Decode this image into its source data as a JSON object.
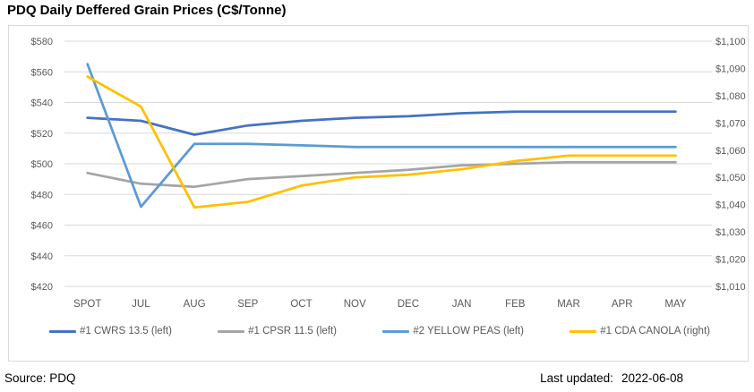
{
  "title": "PDQ Daily Deffered Grain Prices (C$/Tonne)",
  "chart_data": {
    "type": "line",
    "title": "PDQ Daily Deffered Grain Prices (C$/Tonne)",
    "categories": [
      "SPOT",
      "JUL",
      "AUG",
      "SEP",
      "OCT",
      "NOV",
      "DEC",
      "JAN",
      "FEB",
      "MAR",
      "APR",
      "MAY"
    ],
    "series": [
      {
        "name": "#1 CWRS 13.5 (left)",
        "axis": "left",
        "color": "#4472C4",
        "values": [
          530,
          528,
          519,
          525,
          528,
          530,
          531,
          533,
          534,
          534,
          534,
          534
        ]
      },
      {
        "name": "#1 CPSR 11.5 (left)",
        "axis": "left",
        "color": "#A5A5A5",
        "values": [
          494,
          487,
          485,
          490,
          492,
          494,
          496,
          499,
          500,
          501,
          501,
          501
        ]
      },
      {
        "name": "#2 YELLOW PEAS (left)",
        "axis": "left",
        "color": "#5B9BD5",
        "values": [
          565,
          472,
          513,
          513,
          512,
          511,
          511,
          511,
          511,
          511,
          511,
          511
        ]
      },
      {
        "name": "#1 CDA CANOLA (right)",
        "axis": "right",
        "color": "#FFC000",
        "values": [
          1087,
          1076,
          1039,
          1041,
          1047,
          1050,
          1051,
          1053,
          1056,
          1058,
          1058,
          1058
        ]
      }
    ],
    "left_axis": {
      "min": 420,
      "max": 580,
      "step": 20,
      "tick_labels_top_to_bottom": [
        "$580",
        "$560",
        "$540",
        "$520",
        "$500",
        "$480",
        "$460",
        "$440",
        "$420"
      ]
    },
    "right_axis": {
      "min": 1010,
      "max": 1100,
      "step": 10,
      "tick_labels_top_to_bottom": [
        "$1,100",
        "$1,090",
        "$1,080",
        "$1,070",
        "$1,060",
        "$1,050",
        "$1,040",
        "$1,030",
        "$1,020",
        "$1,010"
      ]
    },
    "grid": "horizontal",
    "gridline_color": "#D9D9D9",
    "axis_text_color": "#595959",
    "legend_position": "bottom"
  },
  "footer": {
    "source": "Source: PDQ",
    "updated_label": "Last updated:",
    "updated_value": "2022-06-08"
  }
}
